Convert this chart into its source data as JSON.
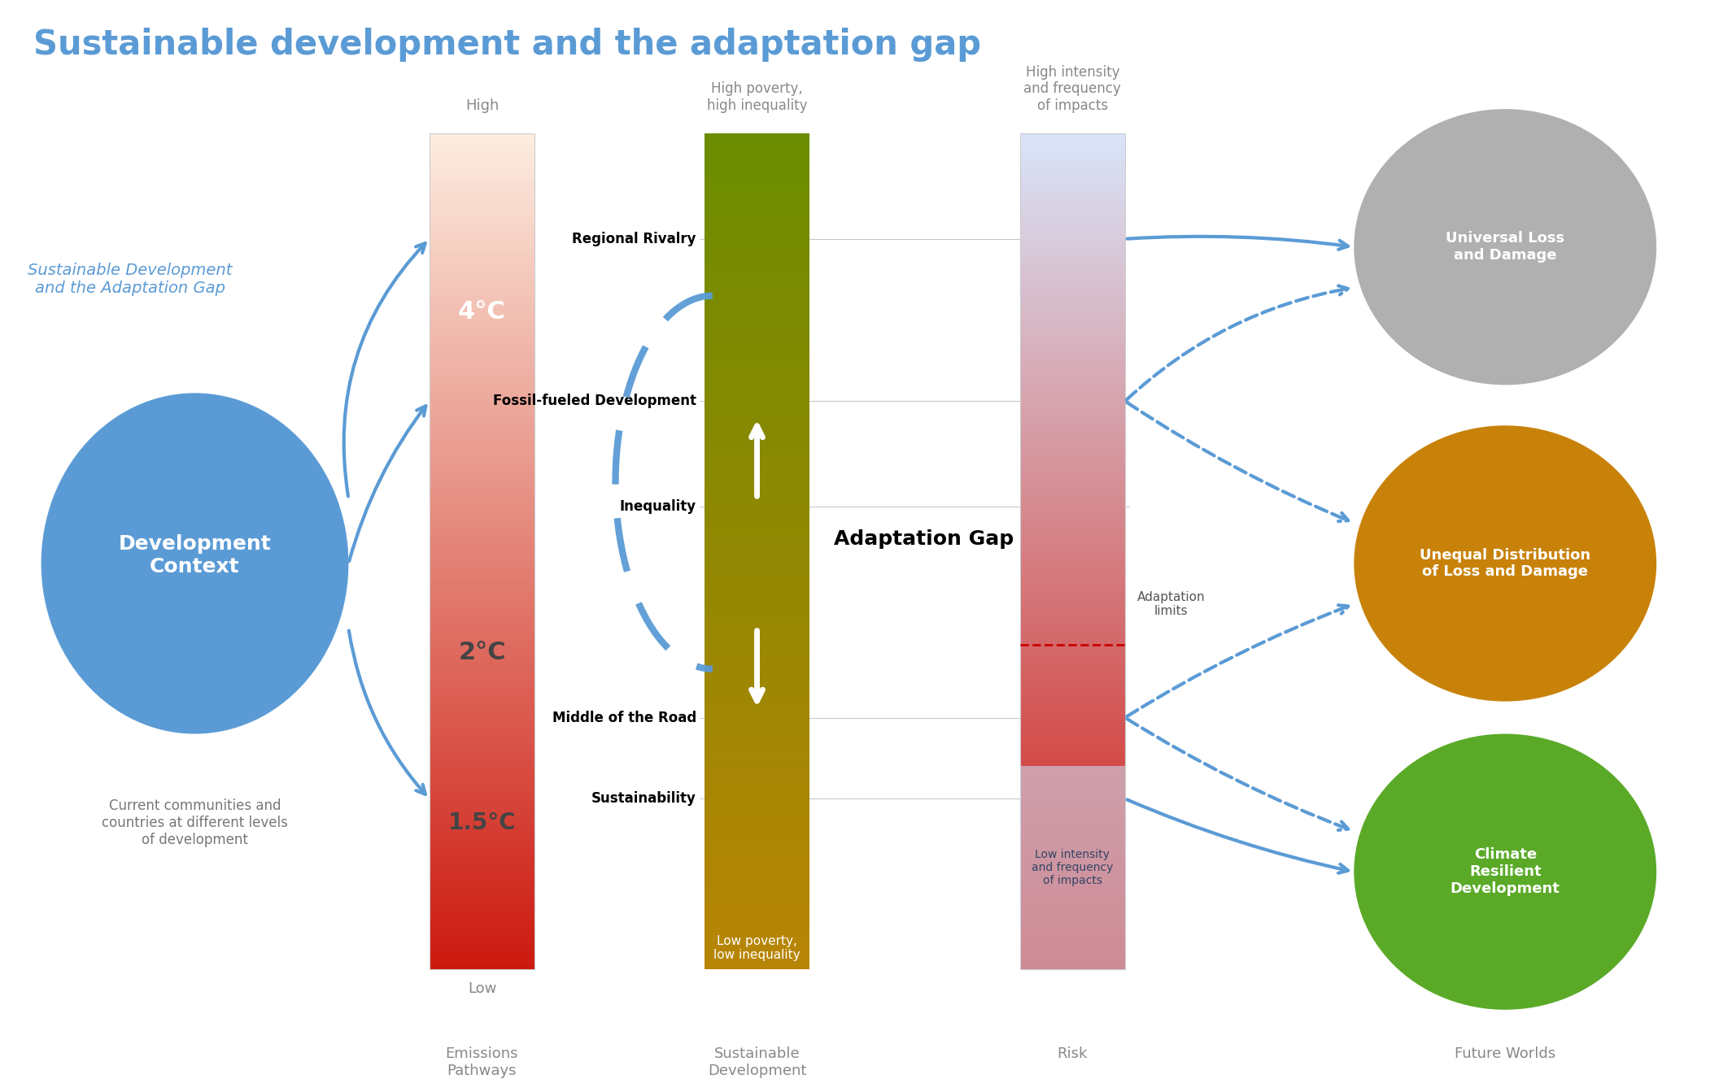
{
  "title": "Sustainable development and the adaptation gap",
  "title_color": "#5b9bd5",
  "title_fontsize": 30,
  "bg_color": "#ffffff",
  "blue_color": "#5b9bd5",
  "left_label": "Sustainable Development\nand the Adaptation Gap",
  "dev_context_label": "Development\nContext",
  "dev_context_sub": "Current communities and\ncountries at different levels\nof development",
  "emissions_label": "Emissions\nPathways",
  "sd_label": "Sustainable\nDevelopment",
  "risk_label": "Risk",
  "future_label": "Future Worlds",
  "temp_high": "High",
  "temp_low": "Low",
  "temp_4": "4°C",
  "temp_2": "2°C",
  "temp_15": "1.5°C",
  "sd_high": "High poverty,\nhigh inequality",
  "sd_low": "Low poverty,\nlow inequality",
  "risk_high": "High intensity\nand frequency\nof impacts",
  "risk_low": "Low intensity\nand frequency\nof impacts",
  "scenario_labels": [
    "Regional Rivalry",
    "Fossil-fueled Development",
    "Inequality",
    "Middle of the Road",
    "Sustainability"
  ],
  "adaptation_gap_label": "Adaptation Gap",
  "adaptation_limits_label": "Adaptation\nlimits",
  "circle1_label": "Universal Loss\nand Damage",
  "circle1_color": "#b0b0b0",
  "circle2_label": "Unequal Distribution\nof Loss and Damage",
  "circle2_color": "#c8820a",
  "circle3_label": "Climate\nResilient\nDevelopment",
  "circle3_color": "#5aaa28"
}
